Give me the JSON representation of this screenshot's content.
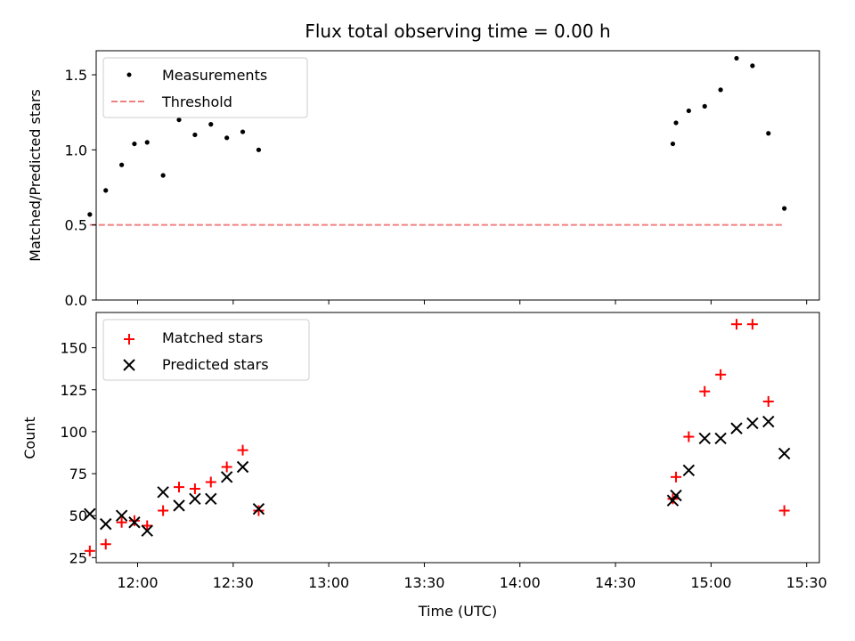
{
  "chart_data": [
    {
      "type": "scatter",
      "title": "Flux total observing time = 0.00 h",
      "xlabel": "",
      "ylabel": "Matched/Predicted stars",
      "xlim": [
        "11:47",
        "15:34"
      ],
      "ylim": [
        0,
        1.66
      ],
      "yticks": [
        "0.0",
        "0.5",
        "1.0",
        "1.5"
      ],
      "grid": false,
      "legend_position": "top-left",
      "series": [
        {
          "name": "Measurements",
          "marker": "dot",
          "color": "#000000",
          "x": [
            "11:45",
            "11:50",
            "11:55",
            "11:59",
            "12:03",
            "12:08",
            "12:13",
            "12:18",
            "12:23",
            "12:28",
            "12:33",
            "12:38",
            "14:48",
            "14:49",
            "14:53",
            "14:58",
            "15:03",
            "15:08",
            "15:13",
            "15:18",
            "15:23"
          ],
          "y": [
            0.57,
            0.73,
            0.9,
            1.04,
            1.05,
            0.83,
            1.2,
            1.1,
            1.17,
            1.08,
            1.12,
            1.0,
            1.04,
            1.18,
            1.26,
            1.29,
            1.4,
            1.61,
            1.56,
            1.11,
            0.61
          ]
        },
        {
          "name": "Threshold",
          "style": "dashed-line",
          "color": "#f08080",
          "x": [
            "11:45",
            "15:23"
          ],
          "y": [
            0.5,
            0.5
          ]
        }
      ]
    },
    {
      "type": "scatter",
      "title": "",
      "xlabel": "Time (UTC)",
      "ylabel": "Count",
      "xlim": [
        "11:47",
        "15:34"
      ],
      "ylim": [
        22,
        171
      ],
      "yticks": [
        "25",
        "50",
        "75",
        "100",
        "125",
        "150"
      ],
      "xticks": [
        "12:00",
        "12:30",
        "13:00",
        "13:30",
        "14:00",
        "14:30",
        "15:00",
        "15:30"
      ],
      "grid": false,
      "legend_position": "top-left",
      "series": [
        {
          "name": "Matched stars",
          "marker": "plus",
          "color": "#ff0000",
          "x": [
            "11:45",
            "11:50",
            "11:55",
            "11:59",
            "12:03",
            "12:08",
            "12:13",
            "12:18",
            "12:23",
            "12:28",
            "12:33",
            "12:38",
            "14:48",
            "14:49",
            "14:53",
            "14:58",
            "15:03",
            "15:08",
            "15:13",
            "15:18",
            "15:23"
          ],
          "y": [
            29,
            33,
            46,
            47,
            44,
            53,
            67,
            66,
            70,
            79,
            89,
            53,
            60,
            73,
            97,
            124,
            134,
            164,
            164,
            118,
            53
          ]
        },
        {
          "name": "Predicted stars",
          "marker": "x",
          "color": "#000000",
          "x": [
            "11:45",
            "11:50",
            "11:55",
            "11:59",
            "12:03",
            "12:08",
            "12:13",
            "12:18",
            "12:23",
            "12:28",
            "12:33",
            "12:38",
            "14:48",
            "14:49",
            "14:53",
            "14:58",
            "15:03",
            "15:08",
            "15:13",
            "15:18",
            "15:23"
          ],
          "y": [
            51,
            45,
            50,
            46,
            41,
            64,
            56,
            60,
            60,
            73,
            79,
            54,
            59,
            62,
            77,
            96,
            96,
            102,
            105,
            106,
            87
          ]
        }
      ]
    }
  ]
}
